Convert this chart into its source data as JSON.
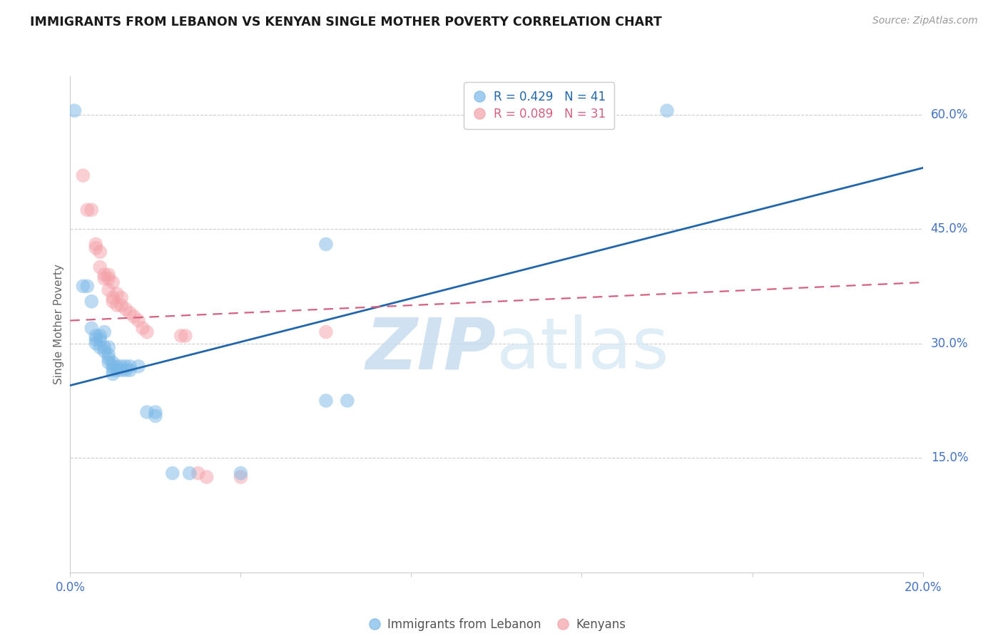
{
  "title": "IMMIGRANTS FROM LEBANON VS KENYAN SINGLE MOTHER POVERTY CORRELATION CHART",
  "source": "Source: ZipAtlas.com",
  "ylabel": "Single Mother Poverty",
  "xlim": [
    0.0,
    0.2
  ],
  "ylim": [
    0.0,
    0.65
  ],
  "x_ticks": [
    0.0,
    0.04,
    0.08,
    0.12,
    0.16,
    0.2
  ],
  "x_tick_labels": [
    "0.0%",
    "",
    "",
    "",
    "",
    "20.0%"
  ],
  "y_tick_labels_right": [
    "60.0%",
    "45.0%",
    "30.0%",
    "15.0%"
  ],
  "y_ticks_right": [
    0.6,
    0.45,
    0.3,
    0.15
  ],
  "legend_text_blue": "R = 0.429   N = 41",
  "legend_text_pink": "R = 0.089   N = 31",
  "legend_label_blue": "Immigrants from Lebanon",
  "legend_label_pink": "Kenyans",
  "blue_color": "#7ab8e8",
  "pink_color": "#f4a0a8",
  "trendline_blue": "#2166ac",
  "trendline_pink": "#d46080",
  "blue_scatter": [
    [
      0.001,
      0.605
    ],
    [
      0.003,
      0.375
    ],
    [
      0.004,
      0.375
    ],
    [
      0.005,
      0.355
    ],
    [
      0.005,
      0.32
    ],
    [
      0.006,
      0.31
    ],
    [
      0.006,
      0.305
    ],
    [
      0.006,
      0.3
    ],
    [
      0.007,
      0.305
    ],
    [
      0.007,
      0.295
    ],
    [
      0.007,
      0.31
    ],
    [
      0.008,
      0.315
    ],
    [
      0.008,
      0.295
    ],
    [
      0.008,
      0.29
    ],
    [
      0.009,
      0.295
    ],
    [
      0.009,
      0.285
    ],
    [
      0.009,
      0.28
    ],
    [
      0.009,
      0.275
    ],
    [
      0.01,
      0.275
    ],
    [
      0.01,
      0.27
    ],
    [
      0.01,
      0.265
    ],
    [
      0.01,
      0.26
    ],
    [
      0.011,
      0.27
    ],
    [
      0.011,
      0.265
    ],
    [
      0.012,
      0.265
    ],
    [
      0.012,
      0.27
    ],
    [
      0.013,
      0.27
    ],
    [
      0.013,
      0.265
    ],
    [
      0.014,
      0.27
    ],
    [
      0.014,
      0.265
    ],
    [
      0.016,
      0.27
    ],
    [
      0.018,
      0.21
    ],
    [
      0.02,
      0.21
    ],
    [
      0.02,
      0.205
    ],
    [
      0.024,
      0.13
    ],
    [
      0.028,
      0.13
    ],
    [
      0.04,
      0.13
    ],
    [
      0.06,
      0.43
    ],
    [
      0.065,
      0.225
    ],
    [
      0.14,
      0.605
    ],
    [
      0.06,
      0.225
    ]
  ],
  "pink_scatter": [
    [
      0.003,
      0.52
    ],
    [
      0.004,
      0.475
    ],
    [
      0.005,
      0.475
    ],
    [
      0.006,
      0.43
    ],
    [
      0.006,
      0.425
    ],
    [
      0.007,
      0.42
    ],
    [
      0.007,
      0.4
    ],
    [
      0.008,
      0.39
    ],
    [
      0.008,
      0.385
    ],
    [
      0.009,
      0.39
    ],
    [
      0.009,
      0.385
    ],
    [
      0.009,
      0.37
    ],
    [
      0.01,
      0.38
    ],
    [
      0.01,
      0.36
    ],
    [
      0.01,
      0.355
    ],
    [
      0.011,
      0.365
    ],
    [
      0.011,
      0.35
    ],
    [
      0.012,
      0.36
    ],
    [
      0.012,
      0.35
    ],
    [
      0.013,
      0.345
    ],
    [
      0.014,
      0.34
    ],
    [
      0.015,
      0.335
    ],
    [
      0.016,
      0.33
    ],
    [
      0.017,
      0.32
    ],
    [
      0.018,
      0.315
    ],
    [
      0.026,
      0.31
    ],
    [
      0.027,
      0.31
    ],
    [
      0.03,
      0.13
    ],
    [
      0.032,
      0.125
    ],
    [
      0.04,
      0.125
    ],
    [
      0.06,
      0.315
    ]
  ],
  "blue_trend_x": [
    0.0,
    0.2
  ],
  "blue_trend_y": [
    0.245,
    0.53
  ],
  "pink_trend_x": [
    0.0,
    0.2
  ],
  "pink_trend_y": [
    0.33,
    0.38
  ]
}
